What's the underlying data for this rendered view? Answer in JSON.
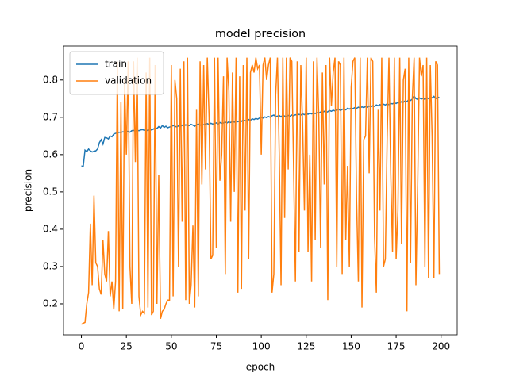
{
  "chart_data": {
    "type": "line",
    "title": "model precision",
    "x_label": "epoch",
    "y_label": "precision",
    "x": [
      0,
      1,
      2,
      3,
      4,
      5,
      6,
      7,
      8,
      9,
      10,
      11,
      12,
      13,
      14,
      15,
      16,
      17,
      18,
      19,
      20,
      21,
      22,
      23,
      24,
      25,
      26,
      27,
      28,
      29,
      30,
      31,
      32,
      33,
      34,
      35,
      36,
      37,
      38,
      39,
      40,
      41,
      42,
      43,
      44,
      45,
      46,
      47,
      48,
      49,
      50,
      51,
      52,
      53,
      54,
      55,
      56,
      57,
      58,
      59,
      60,
      61,
      62,
      63,
      64,
      65,
      66,
      67,
      68,
      69,
      70,
      71,
      72,
      73,
      74,
      75,
      76,
      77,
      78,
      79,
      80,
      81,
      82,
      83,
      84,
      85,
      86,
      87,
      88,
      89,
      90,
      91,
      92,
      93,
      94,
      95,
      96,
      97,
      98,
      99,
      100,
      101,
      102,
      103,
      104,
      105,
      106,
      107,
      108,
      109,
      110,
      111,
      112,
      113,
      114,
      115,
      116,
      117,
      118,
      119,
      120,
      121,
      122,
      123,
      124,
      125,
      126,
      127,
      128,
      129,
      130,
      131,
      132,
      133,
      134,
      135,
      136,
      137,
      138,
      139,
      140,
      141,
      142,
      143,
      144,
      145,
      146,
      147,
      148,
      149,
      150,
      151,
      152,
      153,
      154,
      155,
      156,
      157,
      158,
      159,
      160,
      161,
      162,
      163,
      164,
      165,
      166,
      167,
      168,
      169,
      170,
      171,
      172,
      173,
      174,
      175,
      176,
      177,
      178,
      179,
      180,
      181,
      182,
      183,
      184,
      185,
      186,
      187,
      188,
      189,
      190,
      191,
      192,
      193,
      194,
      195,
      196,
      197,
      198,
      199
    ],
    "series": [
      {
        "name": "train",
        "color": "#1f77b4",
        "values": [
          0.57,
          0.568,
          0.612,
          0.608,
          0.615,
          0.61,
          0.607,
          0.609,
          0.61,
          0.615,
          0.632,
          0.64,
          0.628,
          0.646,
          0.645,
          0.642,
          0.65,
          0.648,
          0.655,
          0.657,
          0.658,
          0.66,
          0.659,
          0.661,
          0.66,
          0.663,
          0.662,
          0.66,
          0.664,
          0.665,
          0.663,
          0.665,
          0.664,
          0.666,
          0.667,
          0.665,
          0.667,
          0.664,
          0.668,
          0.666,
          0.668,
          0.672,
          0.67,
          0.675,
          0.671,
          0.678,
          0.673,
          0.676,
          0.672,
          0.674,
          0.675,
          0.678,
          0.676,
          0.674,
          0.677,
          0.675,
          0.679,
          0.676,
          0.68,
          0.677,
          0.678,
          0.681,
          0.679,
          0.676,
          0.68,
          0.682,
          0.679,
          0.681,
          0.68,
          0.682,
          0.683,
          0.681,
          0.684,
          0.682,
          0.683,
          0.685,
          0.682,
          0.686,
          0.684,
          0.685,
          0.687,
          0.685,
          0.688,
          0.686,
          0.689,
          0.687,
          0.69,
          0.688,
          0.691,
          0.689,
          0.693,
          0.691,
          0.69,
          0.694,
          0.692,
          0.696,
          0.694,
          0.697,
          0.695,
          0.698,
          0.7,
          0.698,
          0.701,
          0.699,
          0.702,
          0.7,
          0.704,
          0.706,
          0.702,
          0.703,
          0.705,
          0.701,
          0.706,
          0.703,
          0.702,
          0.705,
          0.703,
          0.706,
          0.704,
          0.707,
          0.705,
          0.708,
          0.706,
          0.709,
          0.707,
          0.71,
          0.708,
          0.711,
          0.709,
          0.712,
          0.71,
          0.713,
          0.711,
          0.714,
          0.712,
          0.716,
          0.713,
          0.715,
          0.718,
          0.716,
          0.719,
          0.717,
          0.72,
          0.722,
          0.718,
          0.721,
          0.723,
          0.72,
          0.724,
          0.722,
          0.725,
          0.723,
          0.726,
          0.724,
          0.727,
          0.725,
          0.728,
          0.726,
          0.729,
          0.727,
          0.73,
          0.728,
          0.731,
          0.729,
          0.733,
          0.731,
          0.734,
          0.732,
          0.735,
          0.733,
          0.736,
          0.734,
          0.737,
          0.736,
          0.739,
          0.737,
          0.74,
          0.738,
          0.742,
          0.74,
          0.744,
          0.742,
          0.747,
          0.745,
          0.749,
          0.757,
          0.75,
          0.748,
          0.752,
          0.749,
          0.751,
          0.748,
          0.753,
          0.75,
          0.755,
          0.752,
          0.756,
          0.75,
          0.754,
          0.753
        ]
      },
      {
        "name": "validation",
        "color": "#ff7f0e",
        "values": [
          0.145,
          0.148,
          0.15,
          0.2,
          0.23,
          0.415,
          0.25,
          0.49,
          0.31,
          0.3,
          0.24,
          0.225,
          0.37,
          0.28,
          0.26,
          0.395,
          0.22,
          0.26,
          0.185,
          0.26,
          0.85,
          0.18,
          0.74,
          0.185,
          0.8,
          0.6,
          0.85,
          0.3,
          0.2,
          0.85,
          0.58,
          0.86,
          0.22,
          0.17,
          0.18,
          0.175,
          0.82,
          0.19,
          0.86,
          0.17,
          0.18,
          0.84,
          0.2,
          0.545,
          0.16,
          0.18,
          0.185,
          0.2,
          0.21,
          0.21,
          0.84,
          0.22,
          0.8,
          0.75,
          0.3,
          0.83,
          0.42,
          0.85,
          0.21,
          0.86,
          0.2,
          0.25,
          0.41,
          0.19,
          0.72,
          0.22,
          0.85,
          0.52,
          0.84,
          0.56,
          0.86,
          0.7,
          0.32,
          0.33,
          0.86,
          0.35,
          0.86,
          0.53,
          0.6,
          0.81,
          0.28,
          0.86,
          0.77,
          0.42,
          0.82,
          0.5,
          0.86,
          0.23,
          0.81,
          0.24,
          0.84,
          0.45,
          0.86,
          0.32,
          0.82,
          0.84,
          0.82,
          0.86,
          0.83,
          0.84,
          0.6,
          0.84,
          0.86,
          0.8,
          0.84,
          0.86,
          0.23,
          0.28,
          0.76,
          0.86,
          0.6,
          0.25,
          0.86,
          0.43,
          0.86,
          0.56,
          0.86,
          0.85,
          0.56,
          0.26,
          0.85,
          0.34,
          0.84,
          0.68,
          0.45,
          0.86,
          0.34,
          0.6,
          0.26,
          0.85,
          0.37,
          0.86,
          0.7,
          0.35,
          0.82,
          0.52,
          0.84,
          0.21,
          0.86,
          0.73,
          0.82,
          0.86,
          0.3,
          0.85,
          0.84,
          0.28,
          0.86,
          0.37,
          0.57,
          0.3,
          0.78,
          0.85,
          0.86,
          0.48,
          0.26,
          0.86,
          0.19,
          0.64,
          0.65,
          0.86,
          0.55,
          0.86,
          0.85,
          0.38,
          0.23,
          0.72,
          0.45,
          0.86,
          0.3,
          0.32,
          0.64,
          0.86,
          0.55,
          0.34,
          0.86,
          0.32,
          0.45,
          0.86,
          0.36,
          0.8,
          0.83,
          0.18,
          0.86,
          0.31,
          0.75,
          0.86,
          0.25,
          0.52,
          0.86,
          0.81,
          0.84,
          0.3,
          0.86,
          0.27,
          0.84,
          0.65,
          0.27,
          0.85,
          0.84,
          0.28
        ]
      }
    ],
    "xlim": [
      -9.95,
      208.95
    ],
    "xticks": [
      0,
      25,
      50,
      75,
      100,
      125,
      150,
      175,
      200
    ],
    "ylim": [
      0.117,
      0.891
    ],
    "yticks": [
      0.2,
      0.3,
      0.4,
      0.5,
      0.6,
      0.7,
      0.8
    ],
    "legend": "upper left"
  }
}
